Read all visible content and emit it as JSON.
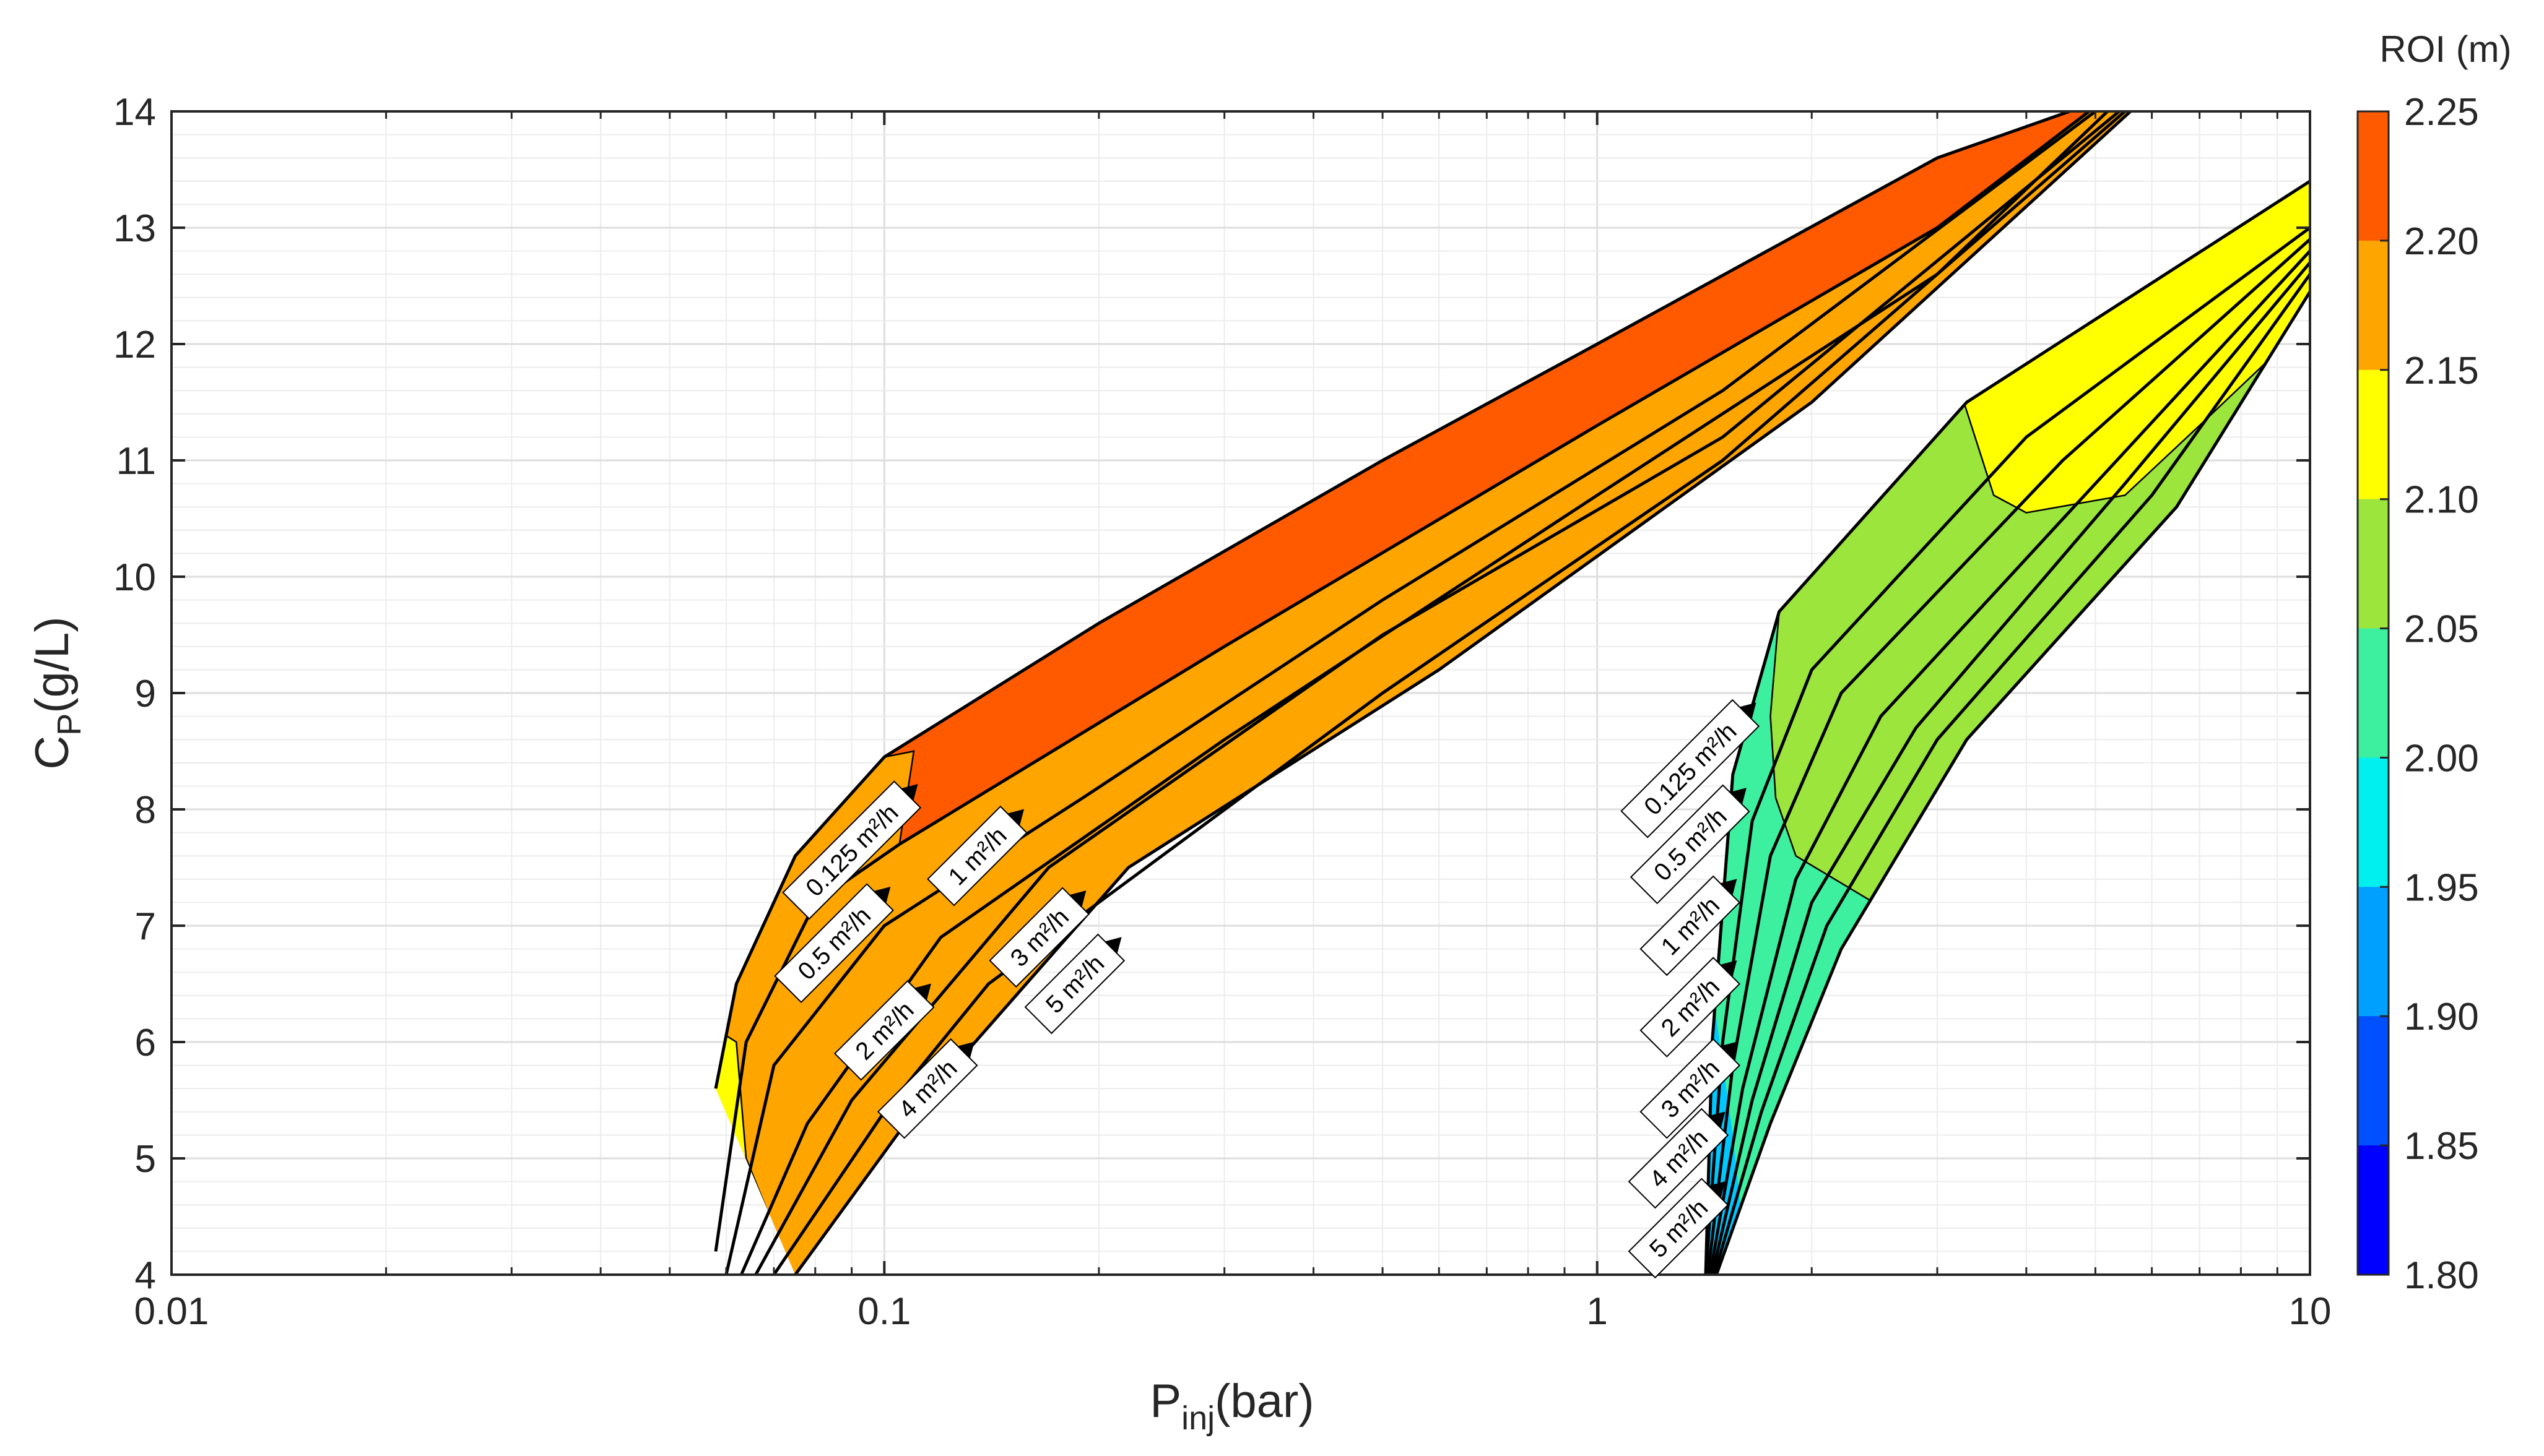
{
  "chart_data": {
    "type": "area",
    "title": "",
    "xlabel": {
      "main": "P",
      "sub": "inj",
      "unit": "(bar)"
    },
    "ylabel": {
      "main": "C",
      "sub": "P",
      "unit": "(g/L)"
    },
    "xscale": "log",
    "xlim": [
      0.01,
      10
    ],
    "ylim": [
      4,
      14
    ],
    "grid": true,
    "x_ticks": [
      {
        "value": 0.01,
        "label": "0.01"
      },
      {
        "value": 0.1,
        "label": "0.1"
      },
      {
        "value": 1,
        "label": "1"
      },
      {
        "value": 10,
        "label": "10"
      }
    ],
    "y_ticks": [
      4,
      5,
      6,
      7,
      8,
      9,
      10,
      11,
      12,
      13,
      14
    ],
    "colorbar": {
      "title": "ROI (m)",
      "levels": [
        "2.25",
        "2.20",
        "2.15",
        "2.10",
        "2.05",
        "2.00",
        "1.95",
        "1.90",
        "1.85",
        "1.80"
      ],
      "colors": [
        "#ff5a00",
        "#ffa500",
        "#ffff00",
        "#9be53c",
        "#3cf0a0",
        "#00f0f0",
        "#00a0ff",
        "#0050ff",
        "#0000ff"
      ]
    },
    "regions": [
      {
        "group": "left",
        "base_color": "#ffa500",
        "zones": [
          {
            "roi_band": "2.20-2.25",
            "color": "#ff5a00",
            "description": "upper band"
          },
          {
            "roi_band": "2.10-2.15",
            "color": "#ffff00",
            "description": "low-pressure tip"
          }
        ],
        "curves": [
          {
            "name": "0.125 m²/h",
            "points": [
              [
                0.058,
                5.6
              ],
              [
                0.062,
                6.5
              ],
              [
                0.075,
                7.6
              ],
              [
                0.1,
                8.45
              ],
              [
                0.2,
                9.6
              ],
              [
                0.5,
                11.0
              ],
              [
                1,
                12.0
              ],
              [
                3,
                13.6
              ],
              [
                4.6,
                14.0
              ]
            ]
          },
          {
            "name": "0.5 m²/h",
            "points": [
              [
                0.058,
                4.2
              ],
              [
                0.064,
                6.0
              ],
              [
                0.08,
                7.2
              ],
              [
                0.105,
                7.7
              ],
              [
                0.3,
                9.4
              ],
              [
                1,
                11.3
              ],
              [
                3,
                13.0
              ],
              [
                4.9,
                14.0
              ]
            ]
          },
          {
            "name": "1 m²/h",
            "points": [
              [
                0.06,
                4.0
              ],
              [
                0.07,
                5.8
              ],
              [
                0.1,
                7.0
              ],
              [
                0.19,
                8.1
              ],
              [
                0.5,
                9.8
              ],
              [
                1.5,
                11.6
              ],
              [
                5.0,
                14.0
              ]
            ]
          },
          {
            "name": "2 m²/h",
            "points": [
              [
                0.063,
                4.0
              ],
              [
                0.078,
                5.3
              ],
              [
                0.12,
                6.9
              ],
              [
                0.3,
                8.6
              ],
              [
                1,
                10.7
              ],
              [
                3,
                12.6
              ],
              [
                5.2,
                14.0
              ]
            ]
          },
          {
            "name": "3 m²/h",
            "points": [
              [
                0.066,
                4.0
              ],
              [
                0.09,
                5.5
              ],
              [
                0.17,
                7.5
              ],
              [
                0.5,
                9.5
              ],
              [
                1.5,
                11.2
              ],
              [
                5.4,
                14.0
              ]
            ]
          },
          {
            "name": "4 m²/h",
            "points": [
              [
                0.07,
                4.0
              ],
              [
                0.1,
                5.4
              ],
              [
                0.14,
                6.5
              ],
              [
                0.5,
                9.0
              ],
              [
                1.5,
                11.0
              ],
              [
                5.5,
                14.0
              ]
            ]
          },
          {
            "name": "5 m²/h",
            "points": [
              [
                0.075,
                4.0
              ],
              [
                0.11,
                5.4
              ],
              [
                0.22,
                7.5
              ],
              [
                0.6,
                9.2
              ],
              [
                2,
                11.5
              ],
              [
                5.6,
                14.0
              ]
            ]
          }
        ]
      },
      {
        "group": "right",
        "base_color": "#9be53c",
        "zones": [
          {
            "roi_band": "2.10-2.15",
            "color": "#ffff00",
            "description": "upper right band"
          },
          {
            "roi_band": "2.00-2.05",
            "color": "#3cf0a0",
            "description": "lower band"
          },
          {
            "roi_band": "1.80-2.00",
            "color": "#00c8ff",
            "description": "near-threshold sliver"
          }
        ],
        "curves": [
          {
            "name": "0.125 m²/h",
            "points": [
              [
                1.42,
                4.0
              ],
              [
                1.45,
                6.0
              ],
              [
                1.55,
                8.3
              ],
              [
                1.8,
                9.7
              ],
              [
                3.3,
                11.5
              ],
              [
                10,
                13.4
              ]
            ]
          },
          {
            "name": "0.5 m²/h",
            "points": [
              [
                1.42,
                4.0
              ],
              [
                1.5,
                6.0
              ],
              [
                1.65,
                7.9
              ],
              [
                2.0,
                9.2
              ],
              [
                4,
                11.2
              ],
              [
                10,
                13.0
              ]
            ]
          },
          {
            "name": "1 m²/h",
            "points": [
              [
                1.43,
                4.0
              ],
              [
                1.55,
                5.8
              ],
              [
                1.75,
                7.6
              ],
              [
                2.2,
                9.0
              ],
              [
                4.5,
                11.0
              ],
              [
                10,
                12.9
              ]
            ]
          },
          {
            "name": "2 m²/h",
            "points": [
              [
                1.44,
                4.0
              ],
              [
                1.6,
                5.6
              ],
              [
                1.9,
                7.4
              ],
              [
                2.5,
                8.8
              ],
              [
                5,
                10.8
              ],
              [
                10,
                12.8
              ]
            ]
          },
          {
            "name": "3 m²/h",
            "points": [
              [
                1.45,
                4.0
              ],
              [
                1.65,
                5.5
              ],
              [
                2.0,
                7.2
              ],
              [
                2.8,
                8.7
              ],
              [
                5.5,
                10.8
              ],
              [
                10,
                12.7
              ]
            ]
          },
          {
            "name": "4 m²/h",
            "points": [
              [
                1.46,
                4.0
              ],
              [
                1.7,
                5.4
              ],
              [
                2.1,
                7.0
              ],
              [
                3.0,
                8.6
              ],
              [
                6,
                10.7
              ],
              [
                10,
                12.6
              ]
            ]
          },
          {
            "name": "5 m²/h",
            "points": [
              [
                1.47,
                4.0
              ],
              [
                1.75,
                5.3
              ],
              [
                2.2,
                6.8
              ],
              [
                3.3,
                8.6
              ],
              [
                6.5,
                10.6
              ],
              [
                10,
                12.45
              ]
            ]
          }
        ]
      }
    ],
    "labels": [
      {
        "group": "left",
        "text": "0.125 m²/h",
        "at": [
          0.09,
          7.65
        ]
      },
      {
        "group": "left",
        "text": "0.5 m²/h",
        "at": [
          0.085,
          6.85
        ]
      },
      {
        "group": "left",
        "text": "1 m²/h",
        "at": [
          0.135,
          7.6
        ]
      },
      {
        "group": "left",
        "text": "2 m²/h",
        "at": [
          0.1,
          6.1
        ]
      },
      {
        "group": "left",
        "text": "3 m²/h",
        "at": [
          0.165,
          6.9
        ]
      },
      {
        "group": "left",
        "text": "4 m²/h",
        "at": [
          0.115,
          5.6
        ]
      },
      {
        "group": "left",
        "text": "5 m²/h",
        "at": [
          0.185,
          6.5
        ]
      },
      {
        "group": "right",
        "text": "0.125 m²/h",
        "at": [
          1.35,
          8.35
        ]
      },
      {
        "group": "right",
        "text": "0.5 m²/h",
        "at": [
          1.35,
          7.7
        ]
      },
      {
        "group": "right",
        "text": "1 m²/h",
        "at": [
          1.35,
          7.0
        ]
      },
      {
        "group": "right",
        "text": "2 m²/h",
        "at": [
          1.35,
          6.3
        ]
      },
      {
        "group": "right",
        "text": "3 m²/h",
        "at": [
          1.35,
          5.6
        ]
      },
      {
        "group": "right",
        "text": "4 m²/h",
        "at": [
          1.3,
          5.0
        ]
      },
      {
        "group": "right",
        "text": "5 m²/h",
        "at": [
          1.3,
          4.4
        ]
      }
    ]
  }
}
